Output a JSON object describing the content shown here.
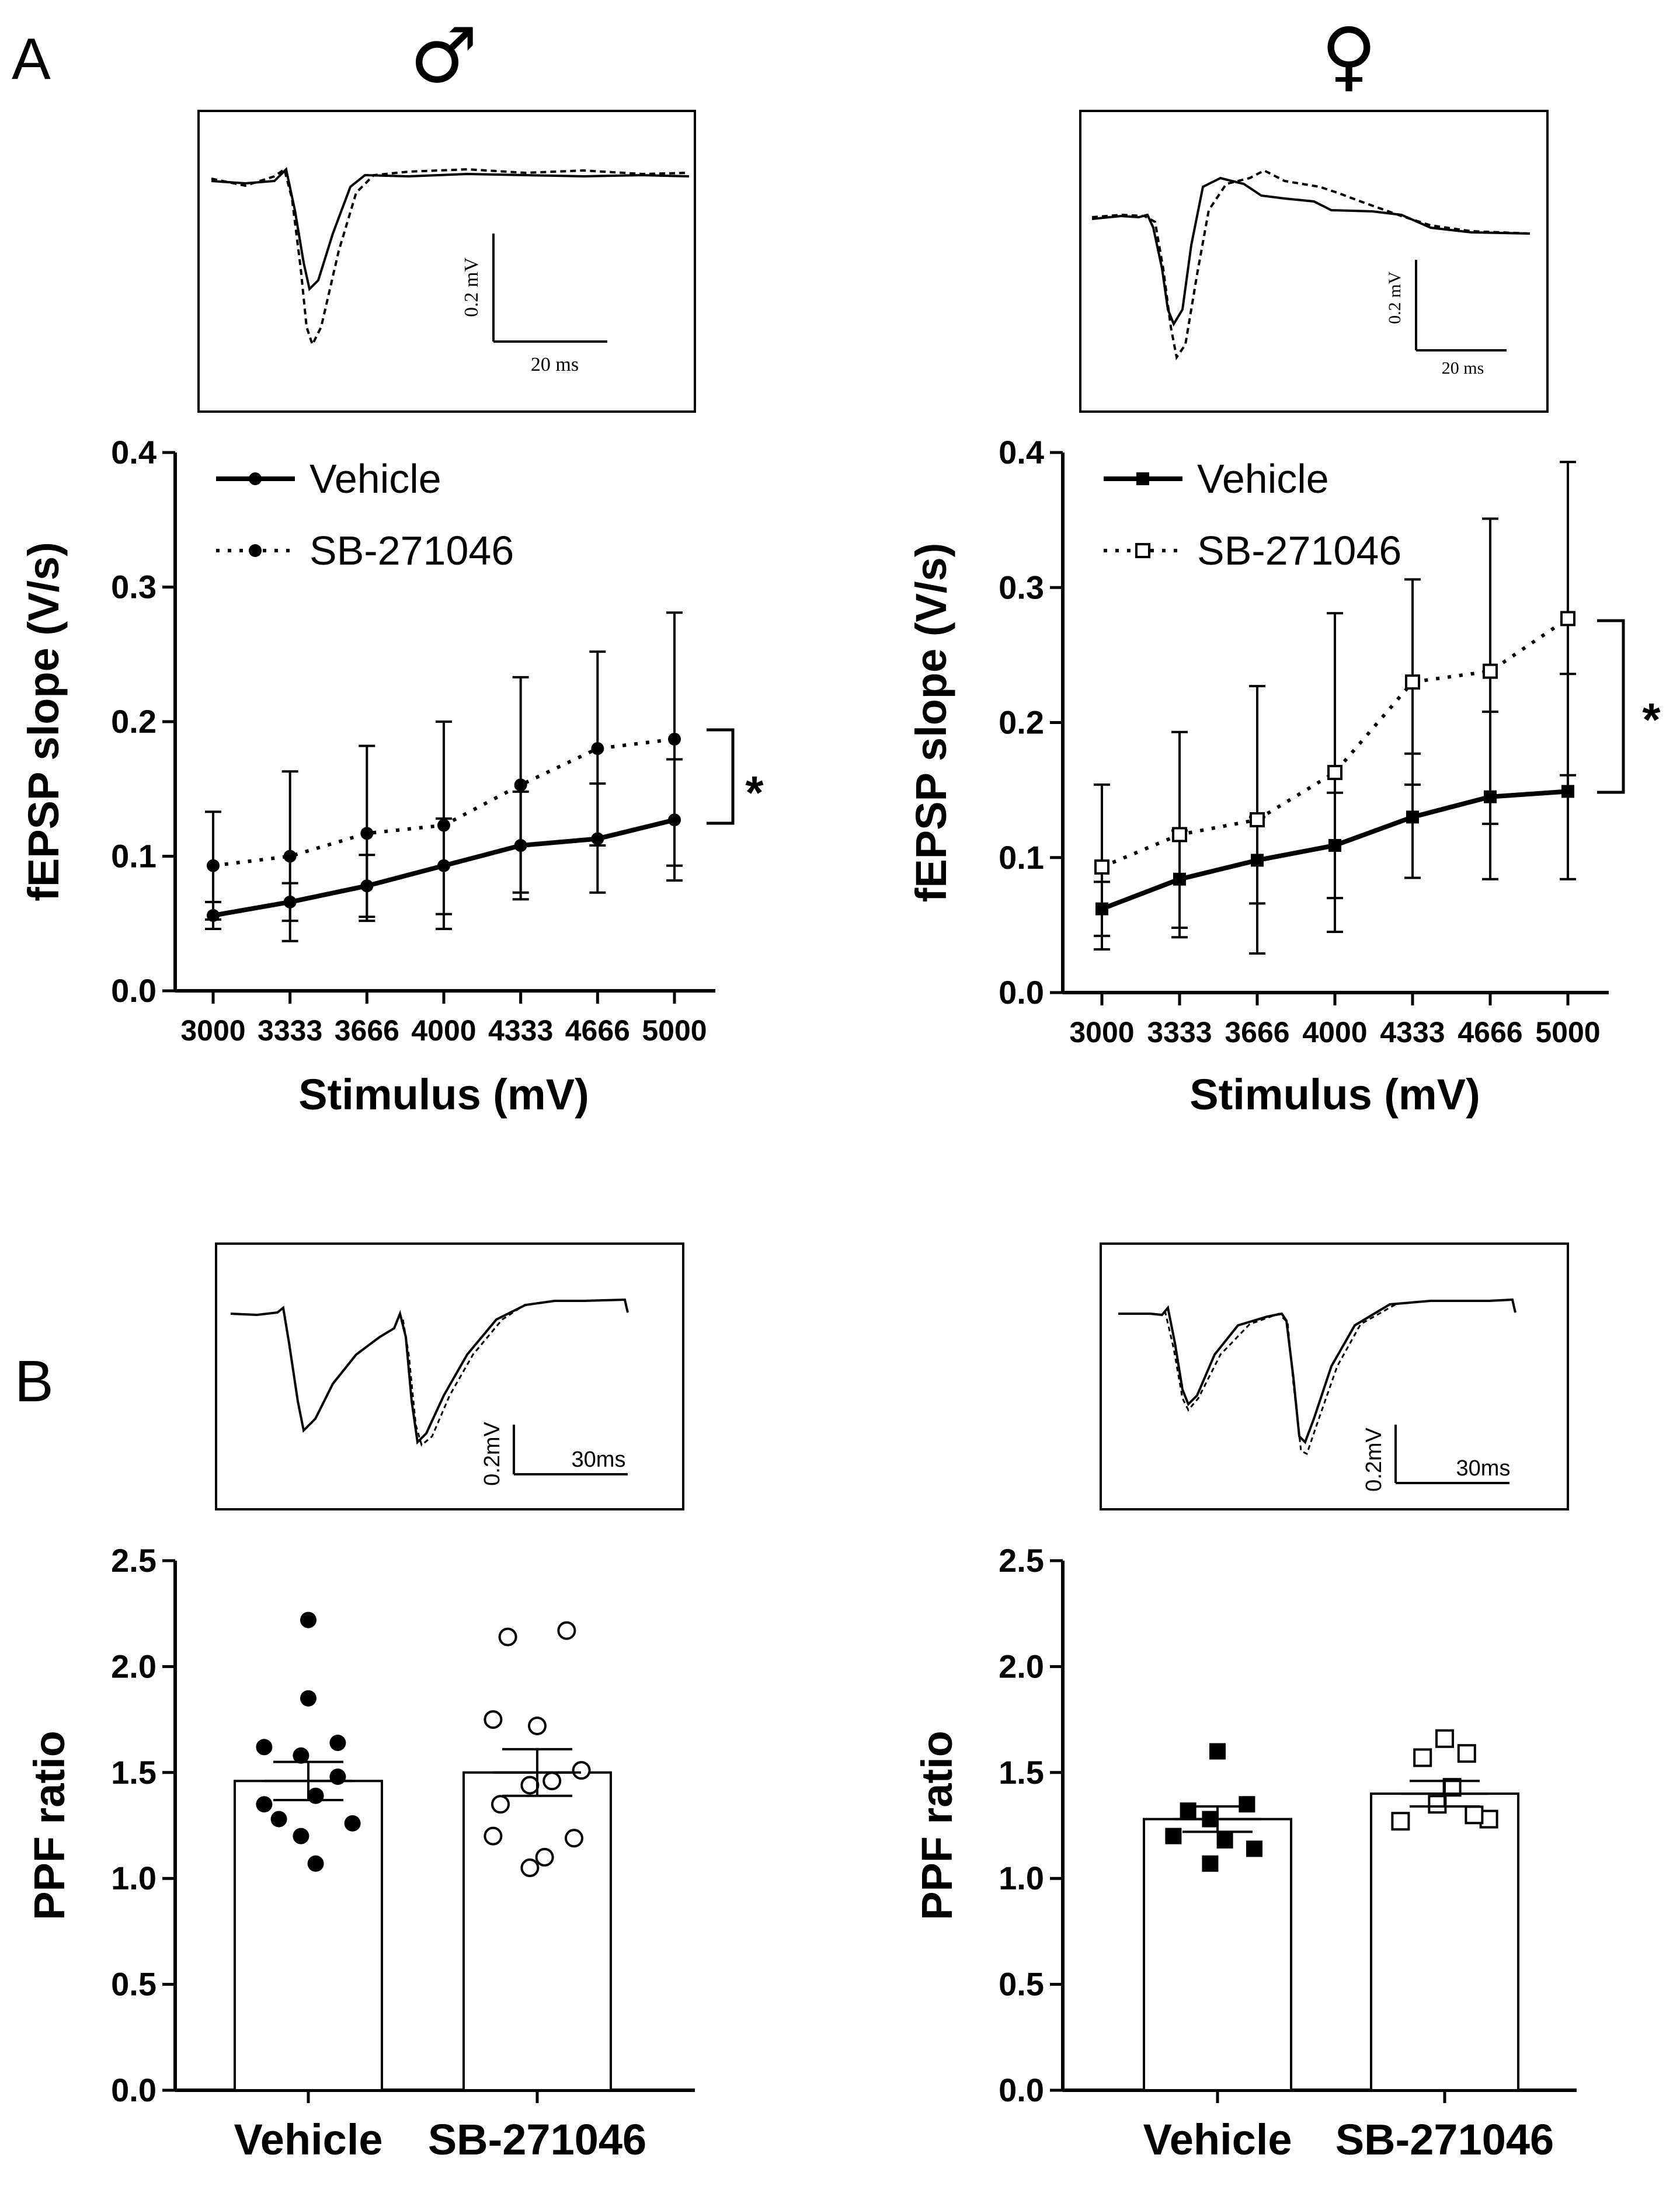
{
  "panels": {
    "a": {
      "letter": "A"
    },
    "b": {
      "letter": "B"
    }
  },
  "sex_symbols": {
    "male": "♂",
    "female": "♀"
  },
  "inset_scale_bars": {
    "a_male": {
      "vertical": "0.2 mV",
      "horizontal": "20 ms"
    },
    "a_female": {
      "vertical": "0.2 mV",
      "horizontal": "20 ms"
    },
    "b_male": {
      "vertical": "0.2mV",
      "horizontal": "30ms"
    },
    "b_female": {
      "vertical": "0.2mV",
      "horizontal": "30ms"
    }
  },
  "significance": {
    "male": "*",
    "female": "*"
  },
  "chart_data": [
    {
      "id": "a_male",
      "type": "line",
      "title": "♂",
      "xlabel": "Stimulus (mV)",
      "ylabel": "fEPSP slope (V/s)",
      "ylim": [
        0,
        0.4
      ],
      "yticks": [
        "0.0",
        "0.1",
        "0.2",
        "0.3",
        "0.4"
      ],
      "categories": [
        "3000",
        "3333",
        "3666",
        "4000",
        "4333",
        "4666",
        "5000"
      ],
      "legend_position": "top-left",
      "series": [
        {
          "name": "Vehicle",
          "marker": "filled-circle",
          "line": "solid",
          "values": [
            0.056,
            0.066,
            0.078,
            0.093,
            0.108,
            0.113,
            0.127
          ],
          "err_low": [
            0.046,
            0.052,
            0.055,
            0.057,
            0.068,
            0.073,
            0.082
          ],
          "err_high": [
            0.066,
            0.08,
            0.101,
            0.128,
            0.148,
            0.154,
            0.172
          ]
        },
        {
          "name": "SB-271046",
          "marker": "filled-circle",
          "line": "dotted",
          "values": [
            0.093,
            0.1,
            0.117,
            0.123,
            0.153,
            0.18,
            0.187
          ],
          "err_low": [
            0.053,
            0.037,
            0.052,
            0.046,
            0.073,
            0.108,
            0.093
          ],
          "err_high": [
            0.133,
            0.163,
            0.182,
            0.2,
            0.233,
            0.252,
            0.281
          ]
        }
      ]
    },
    {
      "id": "a_female",
      "type": "line",
      "title": "♀",
      "xlabel": "Stimulus (mV)",
      "ylabel": "fEPSP slope (V/s)",
      "ylim": [
        0,
        0.4
      ],
      "yticks": [
        "0.0",
        "0.1",
        "0.2",
        "0.3",
        "0.4"
      ],
      "categories": [
        "3000",
        "3333",
        "3666",
        "4000",
        "4333",
        "4666",
        "5000"
      ],
      "legend_position": "top-left",
      "series": [
        {
          "name": "Vehicle",
          "marker": "filled-square",
          "line": "solid",
          "values": [
            0.062,
            0.084,
            0.098,
            0.109,
            0.13,
            0.145,
            0.149
          ],
          "err_low": [
            0.042,
            0.048,
            0.066,
            0.07,
            0.085,
            0.084,
            0.084
          ],
          "err_high": [
            0.082,
            0.12,
            0.13,
            0.148,
            0.177,
            0.208,
            0.236
          ]
        },
        {
          "name": "SB-271046",
          "marker": "open-square",
          "line": "dotted",
          "values": [
            0.093,
            0.117,
            0.128,
            0.163,
            0.23,
            0.238,
            0.277
          ],
          "err_low": [
            0.032,
            0.041,
            0.029,
            0.045,
            0.154,
            0.125,
            0.161
          ],
          "err_high": [
            0.154,
            0.193,
            0.227,
            0.281,
            0.306,
            0.351,
            0.393
          ]
        }
      ]
    },
    {
      "id": "b_male",
      "type": "bar",
      "ylabel": "PPF ratio",
      "ylim": [
        0,
        2.5
      ],
      "yticks": [
        "0.0",
        "0.5",
        "1.0",
        "1.5",
        "2.0",
        "2.5"
      ],
      "categories": [
        "Vehicle",
        "SB-271046"
      ],
      "values": [
        1.46,
        1.5
      ],
      "sem": [
        0.09,
        0.11
      ],
      "points": [
        {
          "marker": "filled-circle",
          "dx": [
            0.0,
            0.0,
            -0.3,
            0.2,
            -0.05,
            0.2,
            -0.3,
            0.05,
            -0.2,
            0.3,
            -0.05,
            0.05
          ],
          "values": [
            2.22,
            1.85,
            1.62,
            1.64,
            1.58,
            1.48,
            1.35,
            1.39,
            1.28,
            1.26,
            1.2,
            1.07
          ]
        },
        {
          "marker": "open-circle",
          "dx": [
            -0.2,
            0.2,
            -0.3,
            0.0,
            0.3,
            -0.05,
            -0.3,
            0.1,
            -0.25,
            0.25,
            -0.05,
            0.05
          ],
          "values": [
            2.14,
            2.17,
            1.75,
            1.72,
            1.51,
            1.44,
            1.2,
            1.46,
            1.35,
            1.19,
            1.05,
            1.1
          ]
        }
      ]
    },
    {
      "id": "b_female",
      "type": "bar",
      "ylabel": "PPF ratio",
      "ylim": [
        0,
        2.5
      ],
      "yticks": [
        "0.0",
        "0.5",
        "1.0",
        "1.5",
        "2.0",
        "2.5"
      ],
      "categories": [
        "Vehicle",
        "SB-271046"
      ],
      "values": [
        1.28,
        1.4
      ],
      "sem": [
        0.06,
        0.06
      ],
      "points": [
        {
          "marker": "filled-square",
          "dx": [
            0.0,
            -0.2,
            0.2,
            -0.05,
            -0.3,
            0.05,
            0.25,
            -0.05
          ],
          "values": [
            1.6,
            1.32,
            1.35,
            1.28,
            1.2,
            1.18,
            1.14,
            1.07
          ]
        },
        {
          "marker": "open-square",
          "dx": [
            0.0,
            -0.15,
            0.15,
            0.05,
            -0.3,
            0.3,
            -0.05,
            0.2
          ],
          "values": [
            1.66,
            1.57,
            1.59,
            1.43,
            1.27,
            1.28,
            1.35,
            1.3
          ]
        }
      ]
    }
  ]
}
